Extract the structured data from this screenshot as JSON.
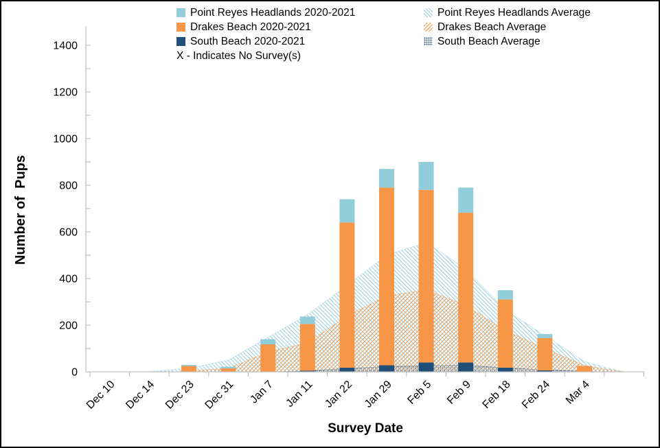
{
  "figure": {
    "border_color": "#000000",
    "background": "#FFFFFF"
  },
  "chart_data": {
    "type": "bar",
    "subtype": "stacked-bars-with-average-area-overlays",
    "title": "",
    "xlabel": "Survey Date",
    "ylabel": "Number of  Pups",
    "ylim": [
      0,
      1400
    ],
    "ytick_step": 200,
    "yminor_step": 100,
    "grid": false,
    "legend_position": "top",
    "categories": [
      "Dec 10",
      "Dec 14",
      "Dec 23",
      "Dec 31",
      "Jan 7",
      "Jan 11",
      "Jan 22",
      "Jan 29",
      "Feb 5",
      "Feb 9",
      "Feb 18",
      "Feb 24",
      "Mar 4"
    ],
    "bar_stack_order": "bottom-to-top: South Beach, Drakes Beach, Point Reyes Headlands",
    "series": [
      {
        "name": "South Beach 2020-2021",
        "type": "bar",
        "color_key": "south",
        "values": [
          0,
          0,
          0,
          0,
          0,
          5,
          18,
          28,
          40,
          40,
          18,
          6,
          0
        ]
      },
      {
        "name": "Drakes Beach 2020-2021",
        "type": "bar",
        "color_key": "drakes",
        "values": [
          0,
          0,
          25,
          15,
          118,
          200,
          622,
          762,
          740,
          642,
          292,
          139,
          25
        ]
      },
      {
        "name": "Point Reyes Headlands 2020-2021",
        "type": "bar",
        "color_key": "prh",
        "values": [
          0,
          0,
          5,
          7,
          22,
          32,
          100,
          80,
          120,
          108,
          40,
          17,
          0
        ]
      }
    ],
    "bar_totals": [
      0,
      0,
      30,
      22,
      140,
      237,
      740,
      870,
      900,
      790,
      350,
      162,
      25
    ],
    "averages": [
      {
        "name": "Point Reyes Headlands Average",
        "pattern": "hatch-blue",
        "color_key": "prh",
        "points": [
          [
            0.9,
            0
          ],
          [
            2,
            15
          ],
          [
            3,
            50
          ],
          [
            4,
            148
          ],
          [
            5,
            245
          ],
          [
            6,
            370
          ],
          [
            7,
            500
          ],
          [
            8,
            555
          ],
          [
            9,
            440
          ],
          [
            10,
            265
          ],
          [
            11,
            155
          ],
          [
            12,
            45
          ],
          [
            12.5,
            20
          ],
          [
            13,
            0
          ]
        ]
      },
      {
        "name": "Drakes Beach Average",
        "pattern": "hatch-orange",
        "color_key": "drakes",
        "points": [
          [
            1.7,
            0
          ],
          [
            3,
            15
          ],
          [
            4,
            85
          ],
          [
            5,
            125
          ],
          [
            6,
            240
          ],
          [
            7,
            325
          ],
          [
            8,
            352
          ],
          [
            9,
            285
          ],
          [
            10,
            178
          ],
          [
            11,
            100
          ],
          [
            12,
            28
          ],
          [
            12.5,
            12
          ],
          [
            13,
            0
          ]
        ]
      },
      {
        "name": "South Beach Average",
        "pattern": "dots-navy",
        "color_key": "south",
        "points": [
          [
            4.2,
            0
          ],
          [
            5,
            4
          ],
          [
            6,
            14
          ],
          [
            7,
            22
          ],
          [
            8,
            26
          ],
          [
            9,
            28
          ],
          [
            10,
            17
          ],
          [
            11,
            8
          ],
          [
            12,
            2
          ],
          [
            12.3,
            0
          ]
        ]
      }
    ],
    "legend": [
      {
        "label": "Point Reyes Headlands 2020-2021",
        "swatch": "solid-prh"
      },
      {
        "label": "Point Reyes Headlands Average",
        "swatch": "hatch-blue"
      },
      {
        "label": "Drakes Beach 2020-2021",
        "swatch": "solid-drakes"
      },
      {
        "label": "Drakes Beach Average",
        "swatch": "hatch-orange"
      },
      {
        "label": "South Beach 2020-2021",
        "swatch": "solid-south"
      },
      {
        "label": "South Beach Average",
        "swatch": "dots"
      },
      {
        "label": "X - Indicates No Survey(s)",
        "swatch": "none"
      }
    ],
    "note": "X - Indicates No Survey(s)",
    "colors": {
      "prh": "#92CDDC",
      "drakes": "#F79646",
      "south": "#1F4E79",
      "axis": "#BFBFBF",
      "text": "#000000"
    }
  }
}
